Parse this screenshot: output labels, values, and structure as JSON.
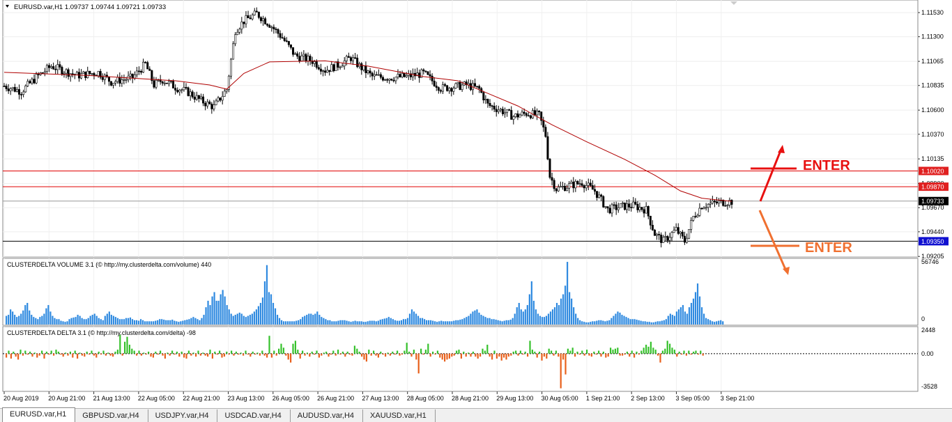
{
  "main_header": "EURUSD.var,H1  1.09737 1.09744 1.09721 1.09733",
  "volume_header": "CLUSTERDELTA VOLUME 3.1 (© http://my.clusterdelta.com/volume) 440",
  "delta_header": "CLUSTERDELTA DELTA 3.1 (© http://my.clusterdelta.com/delta) -98",
  "annotations": {
    "enter_up": "ENTER",
    "enter_down": "ENTER"
  },
  "tabs": [
    {
      "label": "EURUSD.var,H1",
      "active": true
    },
    {
      "label": "GBPUSD.var,H4",
      "active": false
    },
    {
      "label": "USDJPY.var,H4",
      "active": false
    },
    {
      "label": "USDCAD.var,H4",
      "active": false
    },
    {
      "label": "AUDUSD.var,H4",
      "active": false
    },
    {
      "label": "XAUUSD.var,H1",
      "active": false
    }
  ],
  "colors": {
    "ma": "#b00000",
    "resistance": "#e00000",
    "support": "#000000",
    "current": "#999999",
    "volume": "#2f8ae0",
    "delta_pos": "#36c12c",
    "delta_neg": "#e8601c",
    "enter_up": "#e81010",
    "enter_down": "#f07030"
  },
  "chart_data": [
    {
      "type": "candlestick",
      "symbol": "EURUSD.var",
      "timeframe": "H1",
      "ylim": [
        1.092,
        1.1165
      ],
      "y_ticks": [
        "1.11530",
        "1.11300",
        "1.11065",
        "1.10835",
        "1.10600",
        "1.10370",
        "1.10135",
        "1.09900",
        "1.09670",
        "1.09440",
        "1.09205"
      ],
      "x_ticks": [
        "20 Aug 2019",
        "20 Aug 21:00",
        "21 Aug 13:00",
        "22 Aug 05:00",
        "22 Aug 21:00",
        "23 Aug 13:00",
        "26 Aug 05:00",
        "26 Aug 21:00",
        "27 Aug 13:00",
        "28 Aug 05:00",
        "28 Aug 21:00",
        "29 Aug 13:00",
        "30 Aug 05:00",
        "1 Sep 21:00",
        "2 Sep 13:00",
        "3 Sep 05:00",
        "3 Sep 21:00"
      ],
      "close_path": [
        {
          "x": 0,
          "y": 1.1083
        },
        {
          "x": 8,
          "y": 1.1078
        },
        {
          "x": 16,
          "y": 1.1093
        },
        {
          "x": 22,
          "y": 1.1102
        },
        {
          "x": 34,
          "y": 1.1093
        },
        {
          "x": 44,
          "y": 1.1096
        },
        {
          "x": 50,
          "y": 1.1087
        },
        {
          "x": 60,
          "y": 1.1091
        },
        {
          "x": 66,
          "y": 1.1104
        },
        {
          "x": 70,
          "y": 1.1084
        },
        {
          "x": 74,
          "y": 1.1089
        },
        {
          "x": 80,
          "y": 1.1082
        },
        {
          "x": 86,
          "y": 1.1077
        },
        {
          "x": 92,
          "y": 1.1069
        },
        {
          "x": 98,
          "y": 1.1063
        },
        {
          "x": 104,
          "y": 1.108
        },
        {
          "x": 108,
          "y": 1.1136
        },
        {
          "x": 112,
          "y": 1.1145
        },
        {
          "x": 118,
          "y": 1.1152
        },
        {
          "x": 124,
          "y": 1.1142
        },
        {
          "x": 130,
          "y": 1.1129
        },
        {
          "x": 136,
          "y": 1.1112
        },
        {
          "x": 144,
          "y": 1.1107
        },
        {
          "x": 150,
          "y": 1.1098
        },
        {
          "x": 156,
          "y": 1.1103
        },
        {
          "x": 162,
          "y": 1.111
        },
        {
          "x": 166,
          "y": 1.1102
        },
        {
          "x": 172,
          "y": 1.1092
        },
        {
          "x": 180,
          "y": 1.1091
        },
        {
          "x": 188,
          "y": 1.1092
        },
        {
          "x": 196,
          "y": 1.1095
        },
        {
          "x": 204,
          "y": 1.1081
        },
        {
          "x": 210,
          "y": 1.1082
        },
        {
          "x": 216,
          "y": 1.1084
        },
        {
          "x": 222,
          "y": 1.108
        },
        {
          "x": 226,
          "y": 1.1065
        },
        {
          "x": 232,
          "y": 1.106
        },
        {
          "x": 238,
          "y": 1.1054
        },
        {
          "x": 244,
          "y": 1.1057
        },
        {
          "x": 250,
          "y": 1.1055
        },
        {
          "x": 253,
          "y": 1.1036
        },
        {
          "x": 255,
          "y": 1.0997
        },
        {
          "x": 258,
          "y": 1.0985
        },
        {
          "x": 264,
          "y": 1.0988
        },
        {
          "x": 270,
          "y": 1.0991
        },
        {
          "x": 276,
          "y": 1.0983
        },
        {
          "x": 282,
          "y": 1.0965
        },
        {
          "x": 288,
          "y": 1.0968
        },
        {
          "x": 294,
          "y": 1.0969
        },
        {
          "x": 300,
          "y": 1.0965
        },
        {
          "x": 304,
          "y": 1.0942
        },
        {
          "x": 308,
          "y": 1.0935
        },
        {
          "x": 314,
          "y": 1.0946
        },
        {
          "x": 318,
          "y": 1.0935
        },
        {
          "x": 322,
          "y": 1.0958
        },
        {
          "x": 326,
          "y": 1.0969
        },
        {
          "x": 334,
          "y": 1.0972
        },
        {
          "x": 340,
          "y": 1.0973
        }
      ],
      "ma_path": [
        {
          "x": 0,
          "y": 1.1096
        },
        {
          "x": 40,
          "y": 1.1093
        },
        {
          "x": 80,
          "y": 1.1088
        },
        {
          "x": 96,
          "y": 1.1084
        },
        {
          "x": 104,
          "y": 1.108
        },
        {
          "x": 112,
          "y": 1.1095
        },
        {
          "x": 124,
          "y": 1.1106
        },
        {
          "x": 150,
          "y": 1.1107
        },
        {
          "x": 170,
          "y": 1.1102
        },
        {
          "x": 196,
          "y": 1.1092
        },
        {
          "x": 212,
          "y": 1.1088
        },
        {
          "x": 226,
          "y": 1.1076
        },
        {
          "x": 240,
          "y": 1.1064
        },
        {
          "x": 256,
          "y": 1.1046
        },
        {
          "x": 272,
          "y": 1.103
        },
        {
          "x": 290,
          "y": 1.1013
        },
        {
          "x": 304,
          "y": 1.0998
        },
        {
          "x": 316,
          "y": 1.0983
        },
        {
          "x": 326,
          "y": 1.0976
        },
        {
          "x": 340,
          "y": 1.0973
        }
      ],
      "levels": [
        {
          "price": 1.1002,
          "label": "1.10020",
          "kind": "resistance"
        },
        {
          "price": 1.0987,
          "label": "1.09870",
          "kind": "resistance"
        },
        {
          "price": 1.09733,
          "label": "1.09733",
          "kind": "current"
        },
        {
          "price": 1.0935,
          "label": "1.09350",
          "kind": "support"
        }
      ]
    },
    {
      "type": "bar",
      "title": "CLUSTERDELTA VOLUME 3.1",
      "ylim": [
        0,
        56746
      ],
      "y_ticks": [
        "56746",
        "0"
      ],
      "values": [
        8000,
        9000,
        14000,
        12000,
        9000,
        7000,
        8000,
        10000,
        13000,
        18000,
        20000,
        13000,
        9000,
        7000,
        6000,
        5000,
        7000,
        8000,
        10000,
        15000,
        18000,
        12000,
        8000,
        6000,
        5000,
        5000,
        3500,
        3000,
        2500,
        3000,
        5000,
        6000,
        6500,
        7000,
        9000,
        8000,
        6000,
        5000,
        5000,
        6000,
        8000,
        9000,
        10000,
        8000,
        6000,
        5000,
        4000,
        8000,
        10000,
        12000,
        9000,
        8000,
        7000,
        6000,
        5000,
        5000,
        5000,
        6000,
        6000,
        6500,
        5000,
        4000,
        4000,
        3500,
        5000,
        4000,
        3000,
        3000,
        3000,
        3000,
        3000,
        3500,
        4000,
        5000,
        5000,
        4500,
        4000,
        4000,
        4000,
        4500,
        3500,
        3000,
        2500,
        3000,
        3500,
        4000,
        4500,
        5000,
        6000,
        7000,
        6000,
        5000,
        4000,
        6000,
        9000,
        16000,
        22000,
        18000,
        26000,
        30000,
        22000,
        22000,
        28000,
        32000,
        26000,
        18000,
        14000,
        10000,
        8000,
        9000,
        10000,
        11000,
        10000,
        8000,
        7000,
        8000,
        9000,
        10000,
        12000,
        14000,
        17000,
        20000,
        25000,
        40000,
        55000,
        30000,
        28000,
        20000,
        15000,
        9000,
        6000,
        4000,
        3000,
        3000,
        3000,
        3000,
        3000,
        3000,
        3500,
        4000,
        5000,
        7000,
        8000,
        9000,
        10000,
        10000,
        9000,
        10000,
        12000,
        9000,
        7000,
        6000,
        5000,
        4000,
        4000,
        3000,
        3000,
        3000,
        3500,
        4000,
        4000,
        4000,
        3500,
        3000,
        2500,
        3000,
        3500,
        3000,
        3000,
        3000,
        2500,
        2500,
        3000,
        3500,
        3500,
        3500,
        3000,
        3500,
        4500,
        5000,
        5500,
        6000,
        7000,
        6000,
        5000,
        4000,
        3500,
        3500,
        4000,
        5000,
        5000,
        6000,
        10000,
        14000,
        12000,
        10000,
        8000,
        6000,
        6000,
        5000,
        4000,
        4000,
        4000,
        3500,
        3000,
        2500,
        3000,
        3500,
        3000,
        3000,
        3000,
        3000,
        3000,
        3500,
        4000,
        4000,
        4500,
        5000,
        6000,
        7000,
        8000,
        10000,
        12000,
        13000,
        14000,
        11000,
        9000,
        8000,
        7000,
        6000,
        6000,
        5000,
        5000,
        4500,
        4000,
        3500,
        3000,
        3500,
        4000,
        4000,
        4500,
        6000,
        10000,
        16000,
        20000,
        14000,
        12000,
        14000,
        18000,
        28000,
        40000,
        22000,
        14000,
        10000,
        8000,
        7000,
        7000,
        8000,
        10000,
        12000,
        14000,
        16000,
        20000,
        18000,
        24000,
        28000,
        36000,
        58000,
        30000,
        24000,
        16000,
        10000,
        6000,
        4000,
        3000,
        2500,
        2000,
        2000,
        2500,
        3000,
        3000,
        3500,
        4000,
        4000,
        3500,
        3000,
        3500,
        4000,
        6000,
        8000,
        10000,
        12000,
        11000,
        9000,
        8000,
        7000,
        6000,
        5000,
        5000,
        5000,
        4500,
        4000,
        3500,
        3000,
        3000,
        2500,
        2500,
        2000,
        2000,
        2500,
        3000,
        3000,
        3500,
        4000,
        5000,
        8000,
        10000,
        9000,
        8000,
        12000,
        14000,
        16000,
        18000,
        12000,
        10000,
        16000,
        20000,
        24000,
        30000,
        38000,
        26000,
        16000,
        10000,
        6000,
        5000,
        4000,
        3000,
        2500,
        3000,
        3500,
        4000,
        3000
      ],
      "bars_first_x": 8,
      "bars_step": 3.015
    },
    {
      "type": "bar",
      "title": "CLUSTERDELTA DELTA 3.1",
      "ylim": [
        -3528,
        2448
      ],
      "y_ticks": [
        "2448",
        "0.00",
        "-3528"
      ],
      "values": [
        -400,
        300,
        -500,
        200,
        -300,
        -600,
        400,
        -200,
        300,
        -100,
        200,
        -300,
        100,
        -400,
        -200,
        300,
        -500,
        200,
        -100,
        300,
        -200,
        400,
        200,
        -100,
        -300,
        100,
        -200,
        200,
        -400,
        300,
        -500,
        100,
        -200,
        -300,
        200,
        -100,
        300,
        -200,
        -400,
        200,
        -100,
        300,
        -200,
        100,
        -200,
        -300,
        200,
        400,
        1900,
        -200,
        1200,
        1700,
        900,
        500,
        300,
        -200,
        300,
        -200,
        100,
        -100,
        200,
        -300,
        -400,
        200,
        -100,
        300,
        -200,
        -500,
        100,
        -200,
        300,
        -100,
        200,
        -300,
        200,
        -400,
        -500,
        300,
        -200,
        100,
        -300,
        300,
        -200,
        100,
        -200,
        -300,
        400,
        -500,
        200,
        -100,
        300,
        -400,
        -300,
        200,
        -100,
        300,
        -200,
        200,
        -100,
        100,
        -200,
        300,
        -100,
        -300,
        200,
        -100,
        100,
        -200,
        300,
        -200,
        -400,
        1800,
        -400,
        300,
        -200,
        500,
        1000,
        600,
        -200,
        -600,
        -900,
        1000,
        1300,
        400,
        -500,
        300,
        -200,
        100,
        -300,
        200,
        -100,
        300,
        -400,
        -200,
        100,
        200,
        -300,
        -100,
        300,
        -200,
        400,
        -100,
        200,
        -300,
        200,
        -100,
        -200,
        800,
        500,
        200,
        -300,
        -600,
        -800,
        400,
        -200,
        300,
        -200,
        -400,
        200,
        -100,
        -300,
        100,
        -200,
        200,
        -100,
        300,
        -200,
        -100,
        300,
        1100,
        200,
        -300,
        400,
        -600,
        -2000,
        500,
        -100,
        400,
        1000,
        -300,
        200,
        -100,
        300,
        -400,
        -600,
        -800,
        -600,
        -500,
        -300,
        -200,
        300,
        400,
        -500,
        200,
        -300,
        100,
        -300,
        200,
        -300,
        -500,
        -300,
        500,
        300,
        900,
        -300,
        -600,
        300,
        -500,
        -300,
        -700,
        -400,
        -600,
        -300,
        -200,
        200,
        300,
        -200,
        300,
        -100,
        200,
        -300,
        1300,
        400,
        200,
        -400,
        200,
        -700,
        -300,
        -500,
        500,
        300,
        -200,
        300,
        -300,
        -3500,
        -600,
        -2100,
        500,
        300,
        600,
        -300,
        200,
        -100,
        300,
        -200,
        400,
        -200,
        -300,
        200,
        -100,
        300,
        -300,
        200,
        -400,
        -300,
        600,
        400,
        500,
        600,
        -200,
        -200,
        -100,
        200,
        -300,
        300,
        -400,
        200,
        -100,
        300,
        600,
        900,
        700,
        1200,
        600,
        400,
        -200,
        -900,
        300,
        500,
        1300,
        1000,
        600,
        400,
        -300,
        200,
        -100,
        300,
        -200,
        300,
        -100,
        200,
        300,
        -100,
        300,
        -200
      ],
      "bars_first_x": 8,
      "bars_step": 3.4
    }
  ],
  "axis_labels": {
    "price_labels": [
      "1.11530",
      "1.11300",
      "1.11065",
      "1.10835",
      "1.10600",
      "1.10370",
      "1.10135",
      "1.09900",
      "1.09670",
      "1.09440",
      "1.09205"
    ]
  }
}
